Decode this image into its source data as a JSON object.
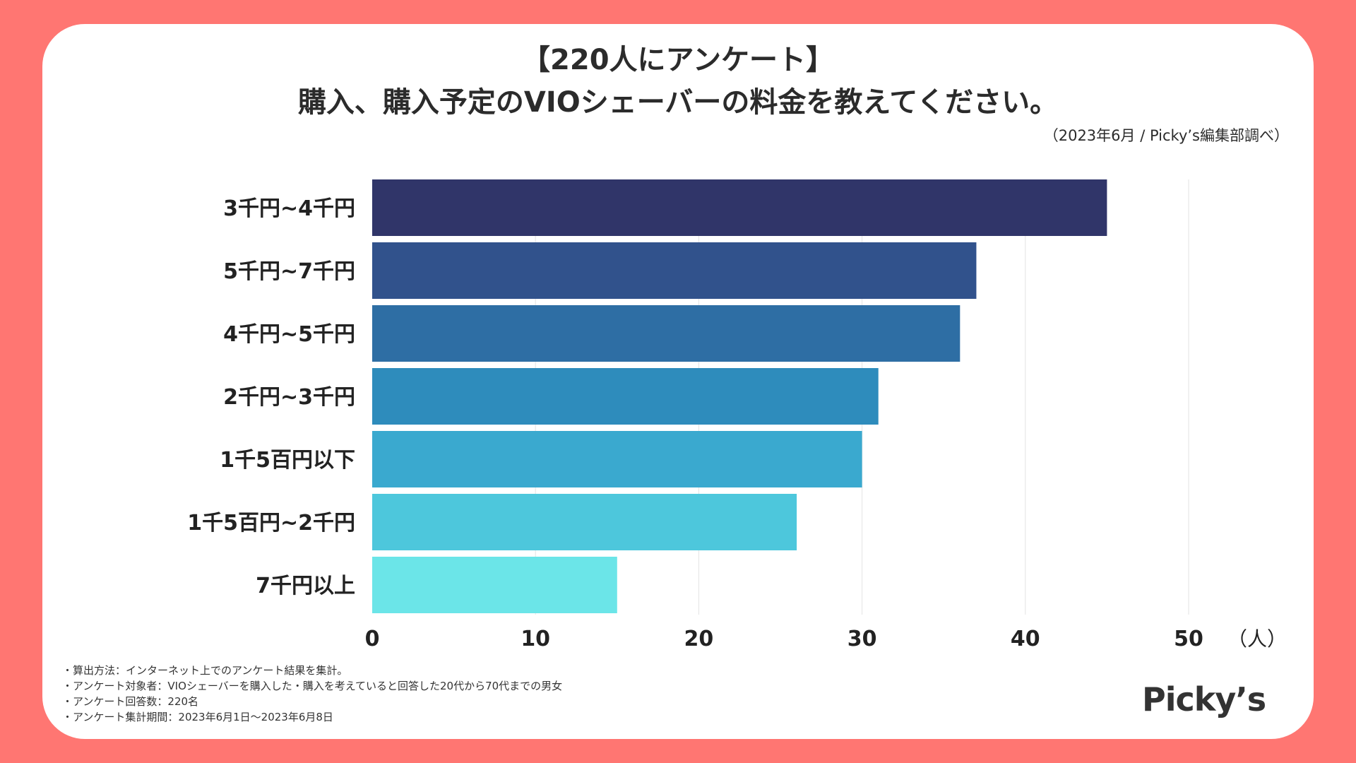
{
  "header": {
    "title_line1": "【220人にアンケート】",
    "title_line2": "購入、購入予定のVIOシェーバーの料金を教えてください。",
    "source": "（2023年6月 / Picky’s編集部調べ）"
  },
  "chart_data": {
    "type": "bar",
    "orientation": "horizontal",
    "categories": [
      "3千円~4千円",
      "5千円~7千円",
      "4千円~5千円",
      "2千円~3千円",
      "1千5百円以下",
      "1千5百円~2千円",
      "7千円以上"
    ],
    "values": [
      45,
      37,
      36,
      31,
      30,
      26,
      15
    ],
    "colors": [
      "#303569",
      "#31528C",
      "#2E6EA4",
      "#2E8CBC",
      "#3AA9CF",
      "#4DC7DC",
      "#6BE5E8"
    ],
    "xlim": [
      0,
      50
    ],
    "xticks": [
      "0",
      "10",
      "20",
      "30",
      "40",
      "50"
    ],
    "x_unit": "（人）",
    "grid": true
  },
  "notes": [
    "・算出方法：インターネット上でのアンケート結果を集計。",
    "・アンケート対象者：VIOシェーバーを購入した・購入を考えていると回答した20代から70代までの男女",
    "・アンケート回答数：220名",
    "・アンケート集計期間：2023年6月1日〜2023年6月8日"
  ],
  "logo": "Picky’s"
}
